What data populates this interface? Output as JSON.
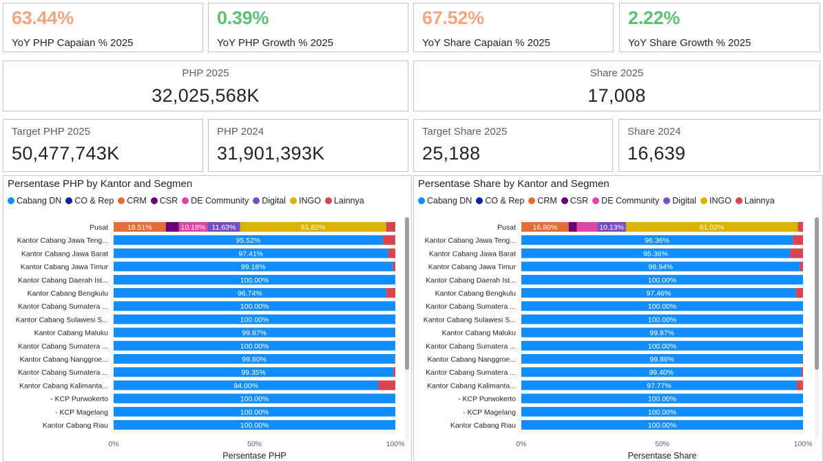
{
  "kpis_top": [
    {
      "value": "63.44%",
      "label": "YoY PHP Capaian % 2025",
      "color": "#f4a582"
    },
    {
      "value": "0.39%",
      "label": "YoY PHP Growth % 2025",
      "color": "#5fbf73"
    },
    {
      "value": "67.52%",
      "label": "YoY Share Capaian % 2025",
      "color": "#f4a582"
    },
    {
      "value": "2.22%",
      "label": "YoY Share Growth % 2025",
      "color": "#5fbf73"
    }
  ],
  "big_cards": [
    {
      "label": "PHP 2025",
      "value": "32,025,568K"
    },
    {
      "label": "Share 2025",
      "value": "17,008"
    }
  ],
  "mid_cards": [
    {
      "label": "Target PHP 2025",
      "value": "50,477,743K"
    },
    {
      "label": "PHP 2024",
      "value": "31,901,393K"
    },
    {
      "label": "Target Share 2025",
      "value": "25,188"
    },
    {
      "label": "Share 2024",
      "value": "16,639"
    }
  ],
  "legend": [
    {
      "name": "Cabang DN",
      "color": "#118dff"
    },
    {
      "name": "CO & Rep",
      "color": "#12239e"
    },
    {
      "name": "CRM",
      "color": "#e66c37"
    },
    {
      "name": "CSR",
      "color": "#6b007b"
    },
    {
      "name": "DE Community",
      "color": "#e044a7"
    },
    {
      "name": "Digital",
      "color": "#744ec2"
    },
    {
      "name": "INGO",
      "color": "#d9b300"
    },
    {
      "name": "Lainnya",
      "color": "#d64550"
    }
  ],
  "chart_data": [
    {
      "type": "bar",
      "title": "Persentase PHP by Kantor and Segmen",
      "xlabel": "Persentase PHP",
      "ylabel": "",
      "xlim": [
        0,
        100
      ],
      "x_ticks": [
        "0%",
        "50%",
        "100%"
      ],
      "categories": [
        "Pusat",
        "Kantor Cabang Jawa Teng...",
        "Kantor Cabang Jawa Barat",
        "Kantor Cabang Jawa Timur",
        "Kantor Cabang Daerah Ist...",
        "Kantor Cabang Bengkulu",
        "Kantor Cabang Sumatera ...",
        "Kantor Cabang Sulawesi S...",
        "Kantor Cabang Maluku",
        "Kantor Cabang Sumatera ...",
        "Kantor Cabang Nanggroe...",
        "Kantor Cabang Sumatera ...",
        "Kantor Cabang Kalimanta...",
        "- KCP Purwokerto",
        "- KCP Magelang",
        "Kantor Cabang Riau"
      ],
      "series": [
        {
          "name": "Cabang DN",
          "values": [
            0,
            95.52,
            97.41,
            99.18,
            100,
            96.74,
            100,
            100,
            99.87,
            100,
            99.8,
            99.35,
            94.0,
            100,
            100,
            100
          ]
        },
        {
          "name": "CO & Rep",
          "values": [
            0,
            0,
            0,
            0,
            0,
            0,
            0,
            0,
            0,
            0,
            0,
            0,
            0,
            0,
            0,
            0
          ]
        },
        {
          "name": "CRM",
          "values": [
            18.51,
            0,
            0,
            0,
            0,
            0,
            0,
            0,
            0,
            0,
            0,
            0,
            0,
            0,
            0,
            0
          ]
        },
        {
          "name": "CSR",
          "values": [
            4.6,
            0,
            0,
            0,
            0,
            0,
            0,
            0,
            0,
            0,
            0,
            0,
            0,
            0,
            0,
            0
          ]
        },
        {
          "name": "DE Community",
          "values": [
            10.18,
            0,
            0,
            0,
            0,
            0,
            0,
            0,
            0,
            0,
            0,
            0,
            0,
            0,
            0,
            0
          ]
        },
        {
          "name": "Digital",
          "values": [
            11.63,
            0,
            0,
            0,
            0,
            0,
            0,
            0,
            0,
            0,
            0,
            0,
            0,
            0,
            0,
            0
          ]
        },
        {
          "name": "INGO",
          "values": [
            51.82,
            0,
            0,
            0,
            0,
            0,
            0,
            0,
            0,
            0,
            0,
            0,
            0,
            0,
            0,
            0
          ]
        },
        {
          "name": "Lainnya",
          "values": [
            3.26,
            4.48,
            2.59,
            0.82,
            0,
            3.26,
            0,
            0,
            0.13,
            0,
            0.2,
            0.65,
            6.0,
            0,
            0,
            0
          ]
        }
      ],
      "data_labels": [
        [
          "",
          "",
          "18.51%",
          "",
          "10.18%",
          "11.63%",
          "51.82%",
          ""
        ],
        [
          "95.52%"
        ],
        [
          "97.41%"
        ],
        [
          "99.18%"
        ],
        [
          "100.00%"
        ],
        [
          "96.74%"
        ],
        [
          "100.00%"
        ],
        [
          "100.00%"
        ],
        [
          "99.87%"
        ],
        [
          "100.00%"
        ],
        [
          "99.80%"
        ],
        [
          "99.35%"
        ],
        [
          "94.00%"
        ],
        [
          "100.00%"
        ],
        [
          "100.00%"
        ],
        [
          "100.00%"
        ]
      ]
    },
    {
      "type": "bar",
      "title": "Persentase Share by Kantor and Segmen",
      "xlabel": "Persentase Share",
      "ylabel": "",
      "xlim": [
        0,
        100
      ],
      "x_ticks": [
        "0%",
        "50%",
        "100%"
      ],
      "categories": [
        "Pusat",
        "Kantor Cabang Jawa Teng...",
        "Kantor Cabang Jawa Barat",
        "Kantor Cabang Jawa Timur",
        "Kantor Cabang Daerah Ist...",
        "Kantor Cabang Bengkulu",
        "Kantor Cabang Sumatera ...",
        "Kantor Cabang Sulawesi S...",
        "Kantor Cabang Maluku",
        "Kantor Cabang Sumatera ...",
        "Kantor Cabang Nanggroe...",
        "Kantor Cabang Sumatera ...",
        "Kantor Cabang Kalimanta...",
        "- KCP Purwokerto",
        "- KCP Magelang",
        "Kantor Cabang Riau"
      ],
      "series": [
        {
          "name": "Cabang DN",
          "values": [
            0,
            96.36,
            95.36,
            98.94,
            100,
            97.46,
            100,
            100,
            99.87,
            100,
            99.86,
            99.4,
            97.77,
            100,
            100,
            100
          ]
        },
        {
          "name": "CO & Rep",
          "values": [
            0,
            0,
            0,
            0,
            0,
            0,
            0,
            0,
            0,
            0,
            0,
            0,
            0,
            0,
            0,
            0
          ]
        },
        {
          "name": "CRM",
          "values": [
            16.8,
            0,
            0,
            0,
            0,
            0,
            0,
            0,
            0,
            0,
            0,
            0,
            0,
            0,
            0,
            0
          ]
        },
        {
          "name": "CSR",
          "values": [
            2.9,
            0,
            0,
            0,
            0,
            0,
            0,
            0,
            0,
            0,
            0,
            0,
            0,
            0,
            0,
            0
          ]
        },
        {
          "name": "DE Community",
          "values": [
            7.3,
            0,
            0,
            0,
            0,
            0,
            0,
            0,
            0,
            0,
            0,
            0,
            0,
            0,
            0,
            0
          ]
        },
        {
          "name": "Digital",
          "values": [
            10.13,
            0,
            0,
            0,
            0,
            0,
            0,
            0,
            0,
            0,
            0,
            0,
            0,
            0,
            0,
            0
          ]
        },
        {
          "name": "INGO",
          "values": [
            61.02,
            0,
            0,
            0,
            0,
            0,
            0,
            0,
            0,
            0,
            0,
            0,
            0,
            0,
            0,
            0
          ]
        },
        {
          "name": "Lainnya",
          "values": [
            1.85,
            3.64,
            4.64,
            1.06,
            0,
            2.54,
            0,
            0,
            0.13,
            0,
            0.14,
            0.6,
            2.23,
            0,
            0,
            0
          ]
        }
      ],
      "data_labels": [
        [
          "",
          "",
          "16.80%",
          "",
          "",
          "10.13%",
          "61.02%",
          ""
        ],
        [
          "96.36%"
        ],
        [
          "95.36%"
        ],
        [
          "98.94%"
        ],
        [
          "100.00%"
        ],
        [
          "97.46%"
        ],
        [
          "100.00%"
        ],
        [
          "100.00%"
        ],
        [
          "99.87%"
        ],
        [
          "100.00%"
        ],
        [
          "99.86%"
        ],
        [
          "99.40%"
        ],
        [
          "97.77%"
        ],
        [
          "100.00%"
        ],
        [
          "100.00%"
        ],
        [
          "100.00%"
        ]
      ]
    }
  ]
}
